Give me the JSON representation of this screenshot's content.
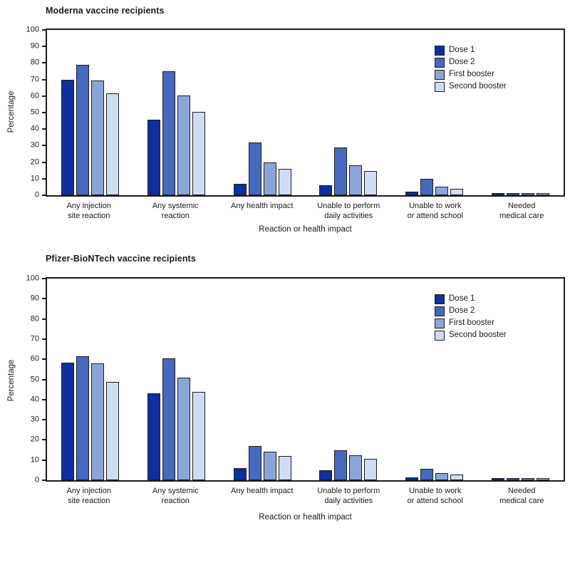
{
  "chart_data": [
    {
      "type": "bar",
      "title": "Moderna vaccine recipients",
      "ylabel": "Percentage",
      "xlabel": "Reaction or health impact",
      "ylim": [
        0,
        100
      ],
      "yticks": [
        0,
        10,
        20,
        30,
        40,
        50,
        60,
        70,
        80,
        90,
        100
      ],
      "grid": false,
      "legend_position": "top-right",
      "categories": [
        [
          "Any injection",
          "site reaction"
        ],
        [
          "Any systemic",
          "reaction"
        ],
        [
          "Any health impact"
        ],
        [
          "Unable to perform",
          "daily activities"
        ],
        [
          "Unable to work",
          "or attend school"
        ],
        [
          "Needed",
          "medical care"
        ]
      ],
      "series": [
        {
          "name": "Dose 1",
          "color": "#0d2f9f",
          "values": [
            70,
            45.5,
            7,
            6,
            2,
            0.6
          ]
        },
        {
          "name": "Dose 2",
          "color": "#4569c0",
          "values": [
            79,
            75,
            32,
            29,
            10,
            1
          ]
        },
        {
          "name": "First booster",
          "color": "#8ca5d9",
          "values": [
            69.5,
            60.5,
            20,
            18,
            5,
            0.8
          ]
        },
        {
          "name": "Second booster",
          "color": "#d0dcf1",
          "values": [
            61.5,
            50.5,
            16,
            14.5,
            3.8,
            0.9
          ]
        }
      ]
    },
    {
      "type": "bar",
      "title": "Pfizer-BioNTech vaccine recipients",
      "ylabel": "Percentage",
      "xlabel": "Reaction or health impact",
      "ylim": [
        0,
        100
      ],
      "yticks": [
        0,
        10,
        20,
        30,
        40,
        50,
        60,
        70,
        80,
        90,
        100
      ],
      "grid": false,
      "legend_position": "top-right",
      "categories": [
        [
          "Any injection",
          "site reaction"
        ],
        [
          "Any systemic",
          "reaction"
        ],
        [
          "Any health impact"
        ],
        [
          "Unable to perform",
          "daily activities"
        ],
        [
          "Unable to work",
          "or attend school"
        ],
        [
          "Needed",
          "medical care"
        ]
      ],
      "series": [
        {
          "name": "Dose 1",
          "color": "#0d2f9f",
          "values": [
            58.3,
            43,
            6,
            5,
            1.5,
            0.5
          ]
        },
        {
          "name": "Dose 2",
          "color": "#4569c0",
          "values": [
            61.5,
            60.5,
            17,
            15,
            5.5,
            0.7
          ]
        },
        {
          "name": "First booster",
          "color": "#8ca5d9",
          "values": [
            58,
            51,
            14,
            12.3,
            3.5,
            0.6
          ]
        },
        {
          "name": "Second booster",
          "color": "#d0dcf1",
          "values": [
            48.8,
            43.7,
            12,
            10.5,
            3,
            0.8
          ]
        }
      ]
    }
  ]
}
